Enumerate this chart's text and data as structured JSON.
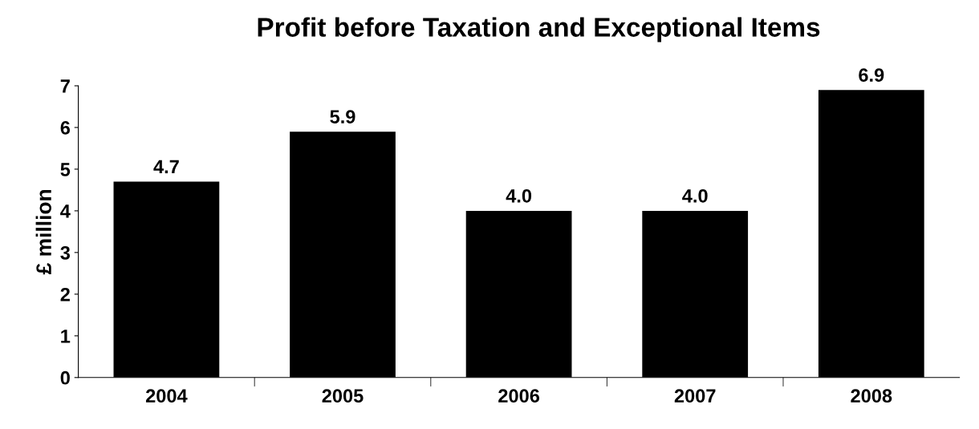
{
  "chart_data": {
    "type": "bar",
    "title": "Profit before Taxation and Exceptional Items",
    "ylabel": "£ million",
    "categories": [
      "2004",
      "2005",
      "2006",
      "2007",
      "2008"
    ],
    "values": [
      4.7,
      5.9,
      4.0,
      4.0,
      6.9
    ],
    "color": "#000000",
    "ylim": [
      0,
      7
    ],
    "yticks": [
      0,
      1,
      2,
      3,
      4,
      5,
      6,
      7
    ],
    "value_labels": [
      "4.7",
      "5.9",
      "4.0",
      "4.0",
      "6.9"
    ],
    "grid": false,
    "legend": false
  }
}
